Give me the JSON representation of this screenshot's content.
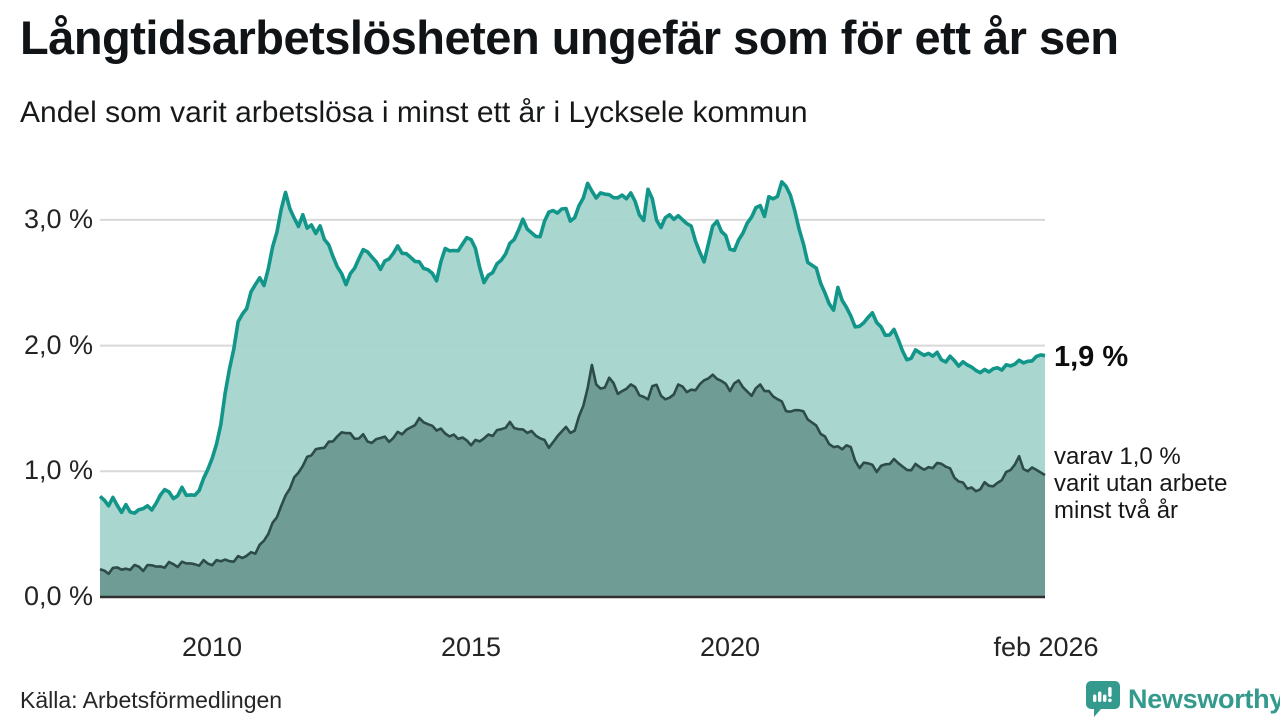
{
  "header": {
    "title": "Långtidsarbetslösheten ungefär som för ett år sen",
    "subtitle": "Andel som varit arbetslösa i minst ett år i Lycksele kommun"
  },
  "annotations": {
    "primary": "1,9 %",
    "secondary_lines": [
      "varav 1,0 %",
      "varit utan arbete",
      "minst två år"
    ]
  },
  "source": "Källa: Arbetsförmedlingen",
  "branding": {
    "name": "Newsworthy",
    "color": "#349a8e"
  },
  "colors": {
    "line_total": "#12968a",
    "area_total": "#a5d4cd",
    "line_two_years": "#2d4c48",
    "area_two_years": "#6f9c95",
    "gridline": "#d8d8d8",
    "baseline": "#2f2f2f"
  },
  "chart_data": {
    "type": "area",
    "title": "Långtidsarbetslösheten ungefär som för ett år sen",
    "subtitle": "Andel som varit arbetslösa i minst ett år i Lycksele kommun",
    "unit": "%",
    "x_domain": [
      2007.83,
      2026.083
    ],
    "ylim": [
      0,
      3.45
    ],
    "grid": "horizontal",
    "y_ticks": [
      {
        "value": 3,
        "label": "3,0 %"
      },
      {
        "value": 2,
        "label": "2,0 %"
      },
      {
        "value": 1,
        "label": "1,0 %"
      },
      {
        "value": 0,
        "label": "0,0 %"
      }
    ],
    "x_ticks": [
      {
        "t": 2010.0,
        "label": "2010"
      },
      {
        "t": 2015.0,
        "label": "2015"
      },
      {
        "t": 2020.0,
        "label": "2020"
      },
      {
        "t": 2026.083,
        "label": "feb 2026"
      }
    ],
    "end_labels": {
      "total": "1,9 %",
      "two_years": "varav 1,0 % varit utan arbete minst två år"
    },
    "series": [
      {
        "name": "Arbetslösa minst ett år",
        "role": "total",
        "last_value": 1.9,
        "points": [
          [
            2007.83,
            0.8
          ],
          [
            2008.0,
            0.74
          ],
          [
            2008.08,
            0.78
          ],
          [
            2008.25,
            0.68
          ],
          [
            2008.33,
            0.72
          ],
          [
            2008.5,
            0.66
          ],
          [
            2008.67,
            0.72
          ],
          [
            2008.83,
            0.7
          ],
          [
            2009.0,
            0.8
          ],
          [
            2009.08,
            0.87
          ],
          [
            2009.25,
            0.78
          ],
          [
            2009.42,
            0.86
          ],
          [
            2009.5,
            0.82
          ],
          [
            2009.67,
            0.8
          ],
          [
            2009.83,
            0.93
          ],
          [
            2009.95,
            1.06
          ],
          [
            2010.08,
            1.2
          ],
          [
            2010.17,
            1.4
          ],
          [
            2010.25,
            1.62
          ],
          [
            2010.33,
            1.81
          ],
          [
            2010.42,
            2.0
          ],
          [
            2010.5,
            2.18
          ],
          [
            2010.58,
            2.26
          ],
          [
            2010.67,
            2.3
          ],
          [
            2010.75,
            2.42
          ],
          [
            2010.83,
            2.5
          ],
          [
            2010.92,
            2.53
          ],
          [
            2010.98,
            2.45
          ],
          [
            2011.08,
            2.62
          ],
          [
            2011.17,
            2.78
          ],
          [
            2011.25,
            2.92
          ],
          [
            2011.33,
            3.08
          ],
          [
            2011.42,
            3.22
          ],
          [
            2011.5,
            3.1
          ],
          [
            2011.58,
            3.0
          ],
          [
            2011.67,
            2.95
          ],
          [
            2011.75,
            3.05
          ],
          [
            2011.83,
            2.92
          ],
          [
            2011.92,
            2.98
          ],
          [
            2012.0,
            2.88
          ],
          [
            2012.08,
            2.95
          ],
          [
            2012.17,
            2.85
          ],
          [
            2012.33,
            2.72
          ],
          [
            2012.42,
            2.62
          ],
          [
            2012.58,
            2.5
          ],
          [
            2012.75,
            2.62
          ],
          [
            2012.83,
            2.7
          ],
          [
            2012.97,
            2.78
          ],
          [
            2013.08,
            2.7
          ],
          [
            2013.25,
            2.62
          ],
          [
            2013.42,
            2.7
          ],
          [
            2013.58,
            2.78
          ],
          [
            2013.75,
            2.72
          ],
          [
            2013.92,
            2.68
          ],
          [
            2014.0,
            2.65
          ],
          [
            2014.17,
            2.6
          ],
          [
            2014.33,
            2.53
          ],
          [
            2014.5,
            2.78
          ],
          [
            2014.67,
            2.74
          ],
          [
            2014.83,
            2.8
          ],
          [
            2014.97,
            2.89
          ],
          [
            2015.08,
            2.76
          ],
          [
            2015.25,
            2.5
          ],
          [
            2015.42,
            2.6
          ],
          [
            2015.58,
            2.68
          ],
          [
            2015.75,
            2.8
          ],
          [
            2015.92,
            2.92
          ],
          [
            2016.0,
            3.0
          ],
          [
            2016.17,
            2.88
          ],
          [
            2016.33,
            2.87
          ],
          [
            2016.5,
            3.08
          ],
          [
            2016.67,
            3.05
          ],
          [
            2016.78,
            3.12
          ],
          [
            2016.95,
            2.97
          ],
          [
            2017.08,
            3.1
          ],
          [
            2017.25,
            3.28
          ],
          [
            2017.42,
            3.18
          ],
          [
            2017.58,
            3.22
          ],
          [
            2017.75,
            3.17
          ],
          [
            2017.87,
            3.2
          ],
          [
            2017.97,
            3.16
          ],
          [
            2018.08,
            3.22
          ],
          [
            2018.2,
            3.1
          ],
          [
            2018.33,
            2.98
          ],
          [
            2018.45,
            3.35
          ],
          [
            2018.55,
            3.0
          ],
          [
            2018.65,
            2.94
          ],
          [
            2018.78,
            3.04
          ],
          [
            2018.9,
            3.02
          ],
          [
            2019.0,
            3.02
          ],
          [
            2019.12,
            3.0
          ],
          [
            2019.28,
            2.92
          ],
          [
            2019.4,
            2.75
          ],
          [
            2019.5,
            2.66
          ],
          [
            2019.62,
            2.9
          ],
          [
            2019.75,
            3.0
          ],
          [
            2019.85,
            2.89
          ],
          [
            2019.95,
            2.85
          ],
          [
            2020.05,
            2.71
          ],
          [
            2020.2,
            2.88
          ],
          [
            2020.3,
            2.93
          ],
          [
            2020.42,
            3.04
          ],
          [
            2020.55,
            3.13
          ],
          [
            2020.67,
            3.04
          ],
          [
            2020.78,
            3.22
          ],
          [
            2020.87,
            3.14
          ],
          [
            2021.0,
            3.29
          ],
          [
            2021.1,
            3.28
          ],
          [
            2021.3,
            3.0
          ],
          [
            2021.48,
            2.68
          ],
          [
            2021.68,
            2.6
          ],
          [
            2021.87,
            2.36
          ],
          [
            2022.0,
            2.29
          ],
          [
            2022.08,
            2.45
          ],
          [
            2022.27,
            2.28
          ],
          [
            2022.47,
            2.12
          ],
          [
            2022.63,
            2.22
          ],
          [
            2022.76,
            2.25
          ],
          [
            2023.0,
            2.08
          ],
          [
            2023.2,
            2.12
          ],
          [
            2023.4,
            1.87
          ],
          [
            2023.6,
            1.96
          ],
          [
            2023.8,
            1.92
          ],
          [
            2024.0,
            1.94
          ],
          [
            2024.1,
            1.87
          ],
          [
            2024.3,
            1.91
          ],
          [
            2024.43,
            1.83
          ],
          [
            2024.55,
            1.88
          ],
          [
            2024.68,
            1.81
          ],
          [
            2024.88,
            1.79
          ],
          [
            2025.05,
            1.81
          ],
          [
            2025.25,
            1.82
          ],
          [
            2025.45,
            1.85
          ],
          [
            2025.65,
            1.88
          ],
          [
            2025.8,
            1.86
          ],
          [
            2025.95,
            1.93
          ],
          [
            2026.08,
            1.92
          ]
        ]
      },
      {
        "name": "varav utan arbete minst två år",
        "role": "two_years",
        "last_value": 1.0,
        "points": [
          [
            2007.83,
            0.22
          ],
          [
            2008.0,
            0.2
          ],
          [
            2008.17,
            0.24
          ],
          [
            2008.33,
            0.21
          ],
          [
            2008.5,
            0.25
          ],
          [
            2008.67,
            0.22
          ],
          [
            2008.83,
            0.26
          ],
          [
            2009.0,
            0.23
          ],
          [
            2009.17,
            0.27
          ],
          [
            2009.33,
            0.25
          ],
          [
            2009.5,
            0.28
          ],
          [
            2009.67,
            0.25
          ],
          [
            2009.83,
            0.28
          ],
          [
            2010.0,
            0.26
          ],
          [
            2010.17,
            0.3
          ],
          [
            2010.33,
            0.28
          ],
          [
            2010.5,
            0.31
          ],
          [
            2010.67,
            0.33
          ],
          [
            2010.83,
            0.36
          ],
          [
            2011.0,
            0.45
          ],
          [
            2011.17,
            0.58
          ],
          [
            2011.33,
            0.72
          ],
          [
            2011.5,
            0.88
          ],
          [
            2011.67,
            1.0
          ],
          [
            2011.83,
            1.1
          ],
          [
            2011.95,
            1.16
          ],
          [
            2012.08,
            1.18
          ],
          [
            2012.25,
            1.22
          ],
          [
            2012.42,
            1.28
          ],
          [
            2012.58,
            1.32
          ],
          [
            2012.75,
            1.26
          ],
          [
            2012.92,
            1.28
          ],
          [
            2013.08,
            1.22
          ],
          [
            2013.25,
            1.28
          ],
          [
            2013.42,
            1.24
          ],
          [
            2013.58,
            1.3
          ],
          [
            2013.75,
            1.32
          ],
          [
            2013.92,
            1.38
          ],
          [
            2014.03,
            1.42
          ],
          [
            2014.2,
            1.36
          ],
          [
            2014.4,
            1.33
          ],
          [
            2014.6,
            1.28
          ],
          [
            2014.8,
            1.27
          ],
          [
            2015.0,
            1.22
          ],
          [
            2015.18,
            1.25
          ],
          [
            2015.43,
            1.3
          ],
          [
            2015.6,
            1.34
          ],
          [
            2015.76,
            1.38
          ],
          [
            2015.92,
            1.33
          ],
          [
            2016.1,
            1.32
          ],
          [
            2016.3,
            1.28
          ],
          [
            2016.53,
            1.19
          ],
          [
            2016.78,
            1.35
          ],
          [
            2016.98,
            1.3
          ],
          [
            2017.1,
            1.45
          ],
          [
            2017.25,
            1.65
          ],
          [
            2017.34,
            1.87
          ],
          [
            2017.45,
            1.62
          ],
          [
            2017.58,
            1.68
          ],
          [
            2017.68,
            1.75
          ],
          [
            2017.87,
            1.6
          ],
          [
            2018.07,
            1.7
          ],
          [
            2018.25,
            1.62
          ],
          [
            2018.4,
            1.55
          ],
          [
            2018.52,
            1.72
          ],
          [
            2018.65,
            1.62
          ],
          [
            2018.79,
            1.55
          ],
          [
            2018.95,
            1.65
          ],
          [
            2019.04,
            1.7
          ],
          [
            2019.2,
            1.62
          ],
          [
            2019.4,
            1.68
          ],
          [
            2019.6,
            1.76
          ],
          [
            2019.79,
            1.74
          ],
          [
            2019.99,
            1.65
          ],
          [
            2020.18,
            1.73
          ],
          [
            2020.37,
            1.59
          ],
          [
            2020.56,
            1.69
          ],
          [
            2020.76,
            1.62
          ],
          [
            2020.95,
            1.57
          ],
          [
            2021.14,
            1.46
          ],
          [
            2021.33,
            1.5
          ],
          [
            2021.53,
            1.41
          ],
          [
            2021.72,
            1.33
          ],
          [
            2021.91,
            1.22
          ],
          [
            2022.1,
            1.18
          ],
          [
            2022.31,
            1.21
          ],
          [
            2022.5,
            1.01
          ],
          [
            2022.6,
            1.09
          ],
          [
            2022.83,
            1.01
          ],
          [
            2023.02,
            1.06
          ],
          [
            2023.22,
            1.09
          ],
          [
            2023.41,
            1.0
          ],
          [
            2023.6,
            1.05
          ],
          [
            2023.8,
            1.01
          ],
          [
            2023.99,
            1.06
          ],
          [
            2024.18,
            1.05
          ],
          [
            2024.38,
            0.93
          ],
          [
            2024.57,
            0.88
          ],
          [
            2024.76,
            0.84
          ],
          [
            2024.95,
            0.91
          ],
          [
            2025.11,
            0.87
          ],
          [
            2025.26,
            0.95
          ],
          [
            2025.45,
            1.03
          ],
          [
            2025.59,
            1.11
          ],
          [
            2025.72,
            0.98
          ],
          [
            2025.84,
            1.03
          ],
          [
            2026.08,
            0.97
          ]
        ]
      }
    ]
  }
}
